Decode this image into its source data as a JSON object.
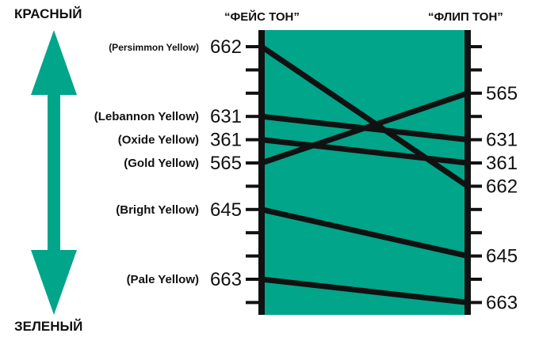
{
  "labels": {
    "top": "КРАСНЫЙ",
    "bottom": "ЗЕЛЕНЫЙ",
    "left_column": "“ФЕЙС ТОН”",
    "right_column": "“ФЛИП ТОН”"
  },
  "colors": {
    "fill": "#00a58a",
    "ink": "#111111"
  },
  "left_scale": {
    "ticks": 12,
    "items": [
      {
        "name": "(Persimmon Yellow)",
        "code": "662",
        "tick": 0
      },
      {
        "name": "(Lebannon Yellow)",
        "code": "631",
        "tick": 3
      },
      {
        "name": "(Oxide Yellow)",
        "code": "361",
        "tick": 4
      },
      {
        "name": "(Gold Yellow)",
        "code": "565",
        "tick": 5
      },
      {
        "name": "(Bright Yellow)",
        "code": "645",
        "tick": 7
      },
      {
        "name": "(Pale Yellow)",
        "code": "663",
        "tick": 10
      }
    ]
  },
  "right_scale": {
    "ticks": 12,
    "items": [
      {
        "code": "565",
        "tick": 2
      },
      {
        "code": "631",
        "tick": 4
      },
      {
        "code": "361",
        "tick": 5
      },
      {
        "code": "662",
        "tick": 6
      },
      {
        "code": "645",
        "tick": 9
      },
      {
        "code": "663",
        "tick": 11
      }
    ]
  },
  "links": [
    {
      "from": "662",
      "to": "662"
    },
    {
      "from": "631",
      "to": "631"
    },
    {
      "from": "361",
      "to": "361"
    },
    {
      "from": "565",
      "to": "565"
    },
    {
      "from": "645",
      "to": "645"
    },
    {
      "from": "663",
      "to": "663"
    }
  ]
}
